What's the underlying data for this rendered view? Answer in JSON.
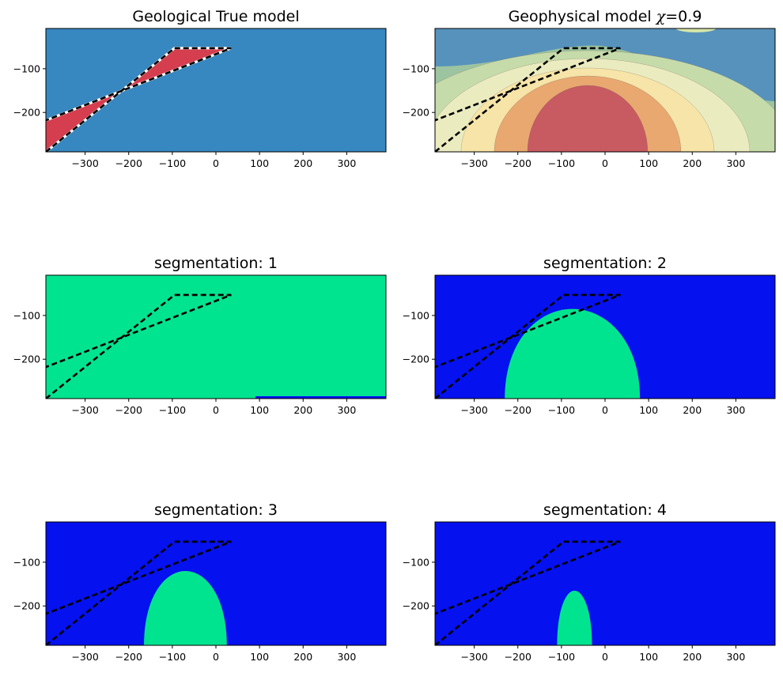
{
  "figure": {
    "panels": [
      {
        "id": "true-model",
        "title_main": "Geological True model",
        "title_extra": "",
        "kind": "true"
      },
      {
        "id": "geophysical-model",
        "title_main": "Geophysical model ",
        "title_italic": "χ",
        "title_extra": "=0.9",
        "kind": "geophys"
      },
      {
        "id": "segmentation-1",
        "title_main": "segmentation: 1",
        "title_extra": "",
        "kind": "seg1"
      },
      {
        "id": "segmentation-2",
        "title_main": "segmentation: 2",
        "title_extra": "",
        "kind": "seg2"
      },
      {
        "id": "segmentation-3",
        "title_main": "segmentation: 3",
        "title_extra": "",
        "kind": "seg3"
      },
      {
        "id": "segmentation-4",
        "title_main": "segmentation: 4",
        "title_extra": "",
        "kind": "seg4"
      }
    ],
    "colors": {
      "background_blue": "#3787C0",
      "dike_red": "#D53E4F",
      "seg_blue": "#0511EE",
      "seg_green": "#01E48F",
      "outline": "#000000"
    }
  },
  "chart_data": [
    {
      "type": "heatmap",
      "title": "Geological True model",
      "x_ticks": [
        -300,
        -200,
        -100,
        0,
        100,
        200,
        300
      ],
      "y_ticks": [
        -100,
        -200
      ],
      "xlim": [
        -390,
        390
      ],
      "ylim": [
        -290,
        -8
      ],
      "dike_polygon": [
        [
          -390,
          -290
        ],
        [
          -95,
          -53
        ],
        [
          35,
          -53
        ],
        [
          -390,
          -218
        ]
      ],
      "units": [
        "background",
        "dike"
      ]
    },
    {
      "type": "heatmap",
      "title": "Geophysical model χ=0.9",
      "x_ticks": [
        -300,
        -200,
        -100,
        0,
        100,
        200,
        300
      ],
      "y_ticks": [
        -100,
        -200
      ],
      "xlim": [
        -390,
        390
      ],
      "ylim": [
        -290,
        -8
      ],
      "peak_center": [
        -40,
        -290
      ],
      "contour_levels": 5
    },
    {
      "type": "heatmap",
      "title": "segmentation: 1",
      "x_ticks": [
        -300,
        -200,
        -100,
        0,
        100,
        200,
        300
      ],
      "y_ticks": [
        -100,
        -200
      ],
      "xlim": [
        -390,
        390
      ],
      "ylim": [
        -290,
        -8
      ],
      "segmented_body": "entire domain"
    },
    {
      "type": "heatmap",
      "title": "segmentation: 2",
      "x_ticks": [
        -300,
        -200,
        -100,
        0,
        100,
        200,
        300
      ],
      "y_ticks": [
        -100,
        -200
      ],
      "xlim": [
        -390,
        390
      ],
      "ylim": [
        -290,
        -8
      ],
      "segmented_body": {
        "x_range": [
          -230,
          80
        ],
        "top_depth": -85
      }
    },
    {
      "type": "heatmap",
      "title": "segmentation: 3",
      "x_ticks": [
        -300,
        -200,
        -100,
        0,
        100,
        200,
        300
      ],
      "y_ticks": [
        -100,
        -200
      ],
      "xlim": [
        -390,
        390
      ],
      "ylim": [
        -290,
        -8
      ],
      "segmented_body": {
        "x_range": [
          -165,
          25
        ],
        "top_depth": -120
      }
    },
    {
      "type": "heatmap",
      "title": "segmentation: 4",
      "x_ticks": [
        -300,
        -200,
        -100,
        0,
        100,
        200,
        300
      ],
      "y_ticks": [
        -100,
        -200
      ],
      "xlim": [
        -390,
        390
      ],
      "ylim": [
        -290,
        -8
      ],
      "segmented_body": {
        "x_range": [
          -110,
          -30
        ],
        "top_depth": -165
      }
    }
  ]
}
